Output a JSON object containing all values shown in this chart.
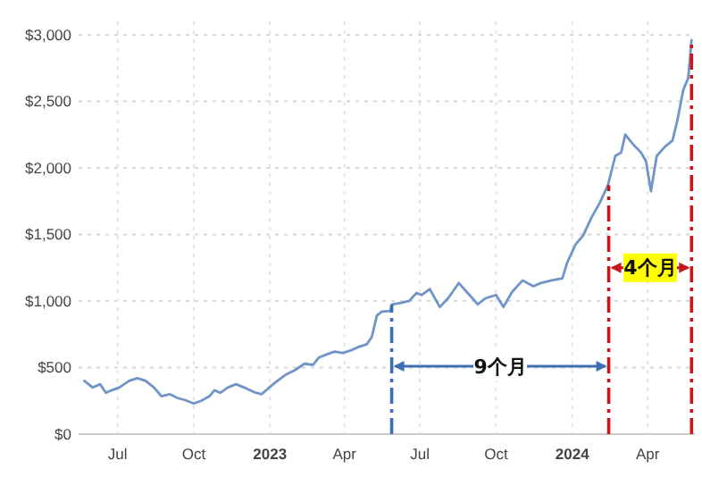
{
  "chart_data": {
    "type": "line",
    "x": [
      "2022-05-22",
      "2022-06-01",
      "2022-06-10",
      "2022-06-17",
      "2022-06-24",
      "2022-07-03",
      "2022-07-15",
      "2022-07-25",
      "2022-08-04",
      "2022-08-14",
      "2022-08-23",
      "2022-09-02",
      "2022-09-12",
      "2022-09-21",
      "2022-10-01",
      "2022-10-10",
      "2022-10-20",
      "2022-10-26",
      "2022-11-02",
      "2022-11-11",
      "2022-11-21",
      "2022-12-01",
      "2022-12-13",
      "2022-12-22",
      "2023-01-02",
      "2023-01-11",
      "2023-01-21",
      "2023-01-31",
      "2023-02-12",
      "2023-02-22",
      "2023-03-01",
      "2023-03-11",
      "2023-03-20",
      "2023-03-30",
      "2023-04-09",
      "2023-04-18",
      "2023-04-28",
      "2023-05-04",
      "2023-05-10",
      "2023-05-16",
      "2023-05-26",
      "2023-05-29",
      "2023-06-08",
      "2023-06-18",
      "2023-06-27",
      "2023-07-03",
      "2023-07-13",
      "2023-07-25",
      "2023-08-04",
      "2023-08-17",
      "2023-08-27",
      "2023-09-09",
      "2023-09-18",
      "2023-10-01",
      "2023-10-10",
      "2023-10-20",
      "2023-11-02",
      "2023-11-15",
      "2023-11-24",
      "2023-12-07",
      "2023-12-20",
      "2023-12-26",
      "2024-01-05",
      "2024-01-14",
      "2024-01-24",
      "2024-02-03",
      "2024-02-13",
      "2024-02-22",
      "2024-02-29",
      "2024-03-05",
      "2024-03-14",
      "2024-03-24",
      "2024-03-30",
      "2024-04-05",
      "2024-04-12",
      "2024-04-22",
      "2024-05-01",
      "2024-05-07",
      "2024-05-14",
      "2024-05-20",
      "2024-05-24"
    ],
    "series": [
      {
        "color": "#6f94c8",
        "values": [
          400,
          350,
          375,
          310,
          330,
          350,
          400,
          420,
          400,
          350,
          285,
          300,
          270,
          255,
          230,
          250,
          285,
          330,
          310,
          350,
          375,
          350,
          315,
          300,
          360,
          405,
          450,
          480,
          530,
          520,
          575,
          600,
          620,
          610,
          630,
          655,
          675,
          730,
          890,
          920,
          925,
          975,
          985,
          1000,
          1060,
          1045,
          1090,
          955,
          1020,
          1135,
          1065,
          975,
          1020,
          1045,
          955,
          1065,
          1155,
          1110,
          1135,
          1155,
          1170,
          1290,
          1425,
          1490,
          1625,
          1735,
          1870,
          2090,
          2115,
          2250,
          2180,
          2115,
          2050,
          1825,
          2090,
          2160,
          2205,
          2360,
          2585,
          2675,
          2960
        ]
      }
    ],
    "xlim": [
      "2022-05-15",
      "2024-05-28"
    ],
    "xticks": [
      {
        "value": "2022-07-01",
        "label": "Jul"
      },
      {
        "value": "2022-10-01",
        "label": "Oct"
      },
      {
        "value": "2023-01-01",
        "label": "2023"
      },
      {
        "value": "2023-04-01",
        "label": "Apr"
      },
      {
        "value": "2023-07-01",
        "label": "Jul"
      },
      {
        "value": "2023-10-01",
        "label": "Oct"
      },
      {
        "value": "2024-01-01",
        "label": "2024"
      },
      {
        "value": "2024-04-01",
        "label": "Apr"
      }
    ],
    "ylim": [
      0,
      3100
    ],
    "yticks": [
      {
        "value": 0,
        "label": "$0"
      },
      {
        "value": 500,
        "label": "$500"
      },
      {
        "value": 1000,
        "label": "$1,000"
      },
      {
        "value": 1500,
        "label": "$1,500"
      },
      {
        "value": 2000,
        "label": "$2,000"
      },
      {
        "value": 2500,
        "label": "$2,500"
      },
      {
        "value": 3000,
        "label": "$3,000"
      }
    ],
    "grid": true,
    "line_style": "solid",
    "ref_lines": [
      {
        "axis": "x",
        "value": "2023-05-28",
        "color": "#3d6db3",
        "line_style": "dashed"
      },
      {
        "axis": "x",
        "value": "2024-02-14",
        "color": "#c8161d",
        "line_style": "dashed"
      },
      {
        "axis": "x",
        "value": "2024-05-24",
        "color": "#c8161d",
        "line_style": "dashed"
      }
    ],
    "annotations": [
      {
        "text": "9个月",
        "x": "2023-10-06",
        "y": 510
      },
      {
        "text": "4个月",
        "x": "2024-04-04",
        "y": 1250
      }
    ]
  }
}
